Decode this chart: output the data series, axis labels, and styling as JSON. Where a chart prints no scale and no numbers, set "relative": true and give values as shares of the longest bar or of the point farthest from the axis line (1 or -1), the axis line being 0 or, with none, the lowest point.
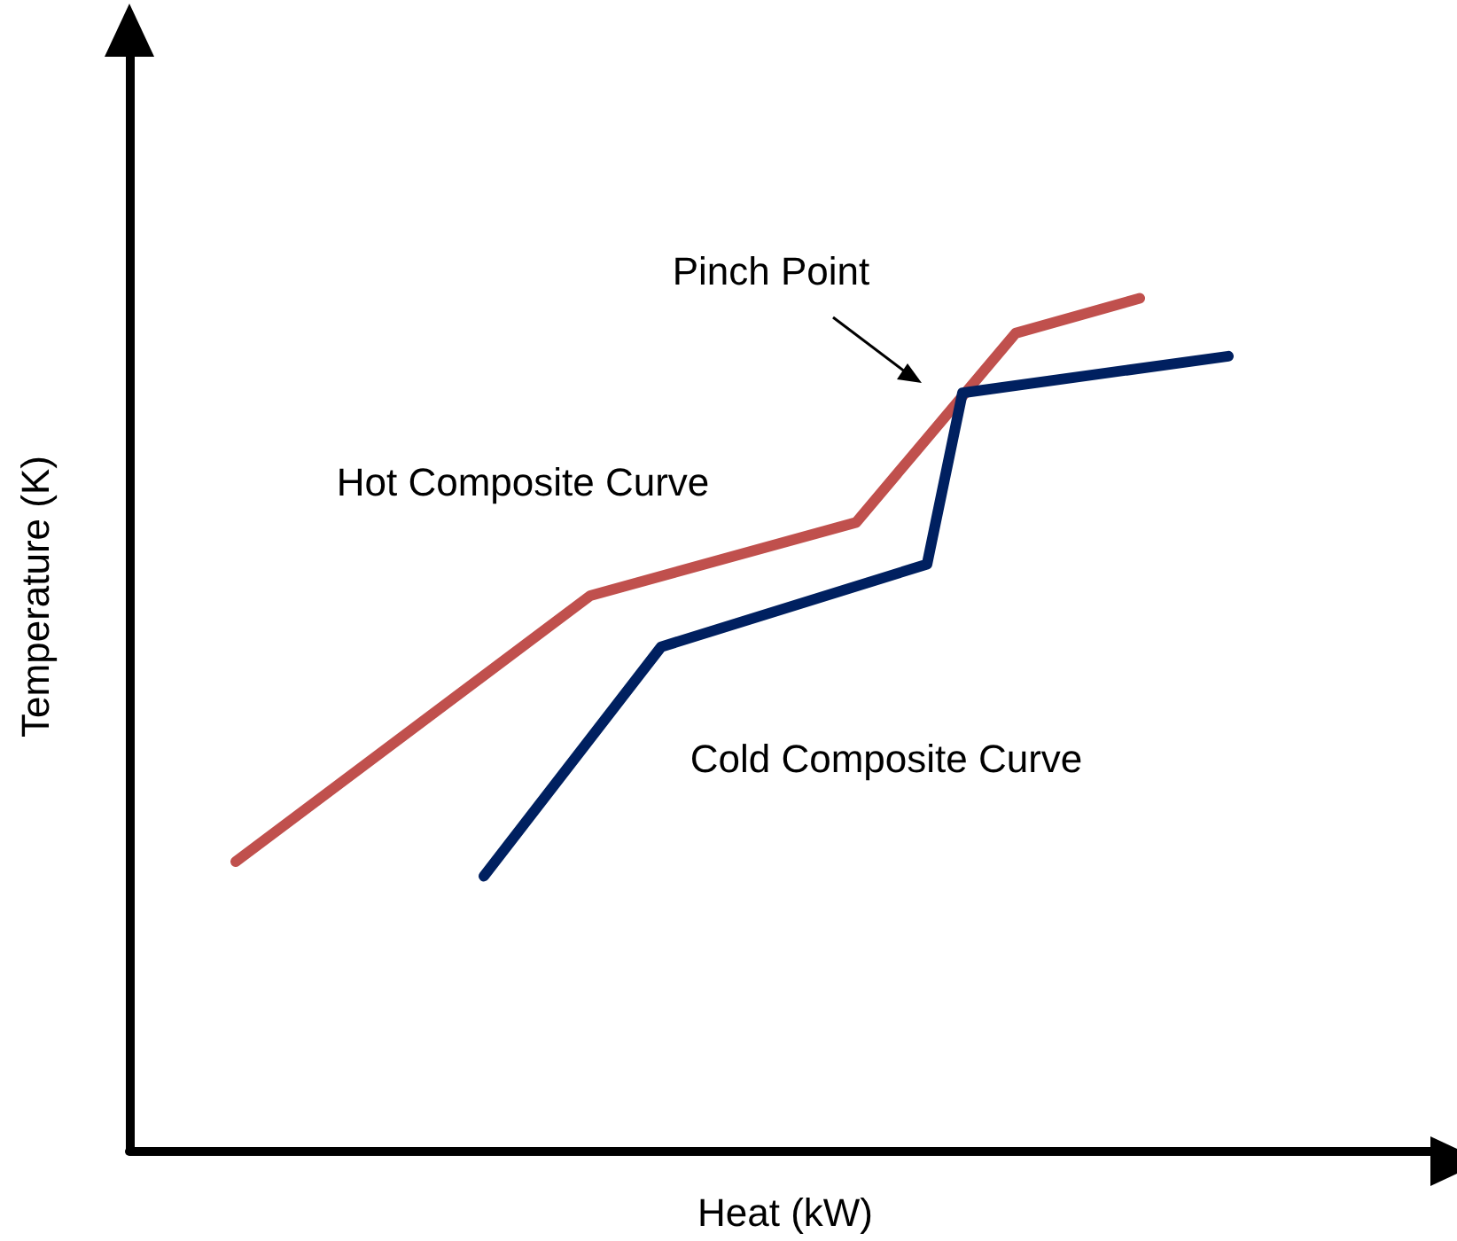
{
  "chart_data": {
    "type": "line",
    "relative": true,
    "xlabel": "Heat (kW)",
    "ylabel": "Temperature (K)",
    "grid": false,
    "legend": false,
    "marker": "none",
    "line_style": "solid",
    "categories": [
      null,
      null,
      null,
      null,
      null,
      null,
      null,
      null,
      null,
      null,
      null,
      null,
      null,
      null,
      null,
      null,
      null,
      null,
      null,
      null,
      null,
      null,
      null,
      null,
      null,
      null,
      null,
      null,
      null,
      null,
      null,
      null,
      null,
      null,
      null,
      null,
      null,
      null,
      null,
      null,
      null,
      null,
      null,
      null,
      null,
      null,
      null,
      null,
      null,
      null,
      null,
      null,
      null,
      null,
      null,
      null,
      null,
      null,
      null,
      null,
      null,
      null,
      null,
      null,
      null,
      null,
      null,
      null,
      null,
      null,
      null,
      null,
      null,
      null,
      null
    ],
    "series": [
      {
        "name": "Hot Composite Curve",
        "color": "#c0504d",
        "values": [
          null,
          null,
          null,
          null,
          null,
          null,
          0.339,
          null,
          null,
          null,
          null,
          null,
          null,
          null,
          null,
          null,
          null,
          null,
          null,
          null,
          null,
          null,
          null,
          null,
          null,
          null,
          0.651,
          null,
          null,
          null,
          null,
          null,
          null,
          null,
          null,
          null,
          null,
          null,
          null,
          null,
          null,
          0.737,
          null,
          null,
          null,
          null,
          null,
          null,
          null,
          null,
          0.959,
          null,
          null,
          null,
          null,
          null,
          null,
          1,
          null,
          null,
          null,
          null,
          null,
          null,
          null,
          null,
          null,
          null,
          null,
          null,
          null,
          null,
          null,
          null,
          null
        ]
      },
      {
        "name": "Cold Composite Curve",
        "color": "#002060",
        "values": [
          null,
          null,
          null,
          null,
          null,
          null,
          null,
          null,
          null,
          null,
          null,
          null,
          null,
          null,
          null,
          null,
          null,
          null,
          null,
          null,
          0.322,
          null,
          null,
          null,
          null,
          null,
          null,
          null,
          null,
          null,
          0.591,
          null,
          null,
          null,
          null,
          null,
          null,
          null,
          null,
          null,
          null,
          null,
          null,
          null,
          null,
          0.688,
          null,
          0.889,
          null,
          null,
          null,
          null,
          null,
          null,
          null,
          null,
          null,
          null,
          null,
          null,
          null,
          null,
          0.932,
          null,
          null,
          null,
          null,
          null,
          null,
          null,
          null,
          null,
          null,
          null,
          null
        ]
      }
    ],
    "annotations": [
      "Pinch Point"
    ]
  }
}
